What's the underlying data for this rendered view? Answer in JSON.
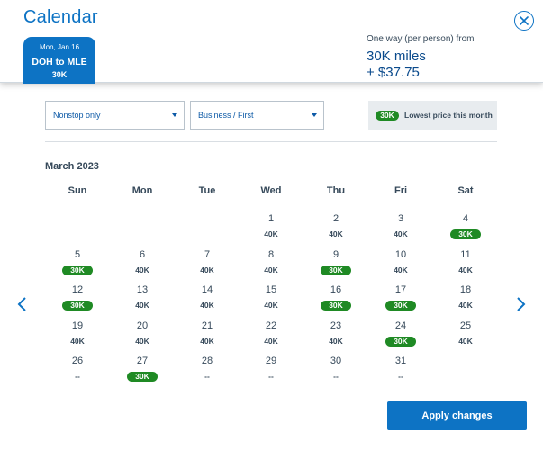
{
  "header": {
    "title": "Calendar",
    "flight_tab": {
      "date": "Mon, Jan 16",
      "route": "DOH to MLE",
      "price": "30K"
    },
    "price_info": {
      "label": "One way (per person) from",
      "miles": "30K miles",
      "cash": "+ $37.75"
    }
  },
  "filters": {
    "stops": "Nonstop only",
    "cabin": "Business / First",
    "legend_pill": "30K",
    "legend_text": "Lowest price this month"
  },
  "calendar": {
    "month": "March 2023",
    "weekdays": [
      "Sun",
      "Mon",
      "Tue",
      "Wed",
      "Thu",
      "Fri",
      "Sat"
    ],
    "days": [
      {
        "n": "1",
        "p": "40K",
        "low": false
      },
      {
        "n": "2",
        "p": "40K",
        "low": false
      },
      {
        "n": "3",
        "p": "40K",
        "low": false
      },
      {
        "n": "4",
        "p": "30K",
        "low": true
      },
      {
        "n": "5",
        "p": "30K",
        "low": true
      },
      {
        "n": "6",
        "p": "40K",
        "low": false
      },
      {
        "n": "7",
        "p": "40K",
        "low": false
      },
      {
        "n": "8",
        "p": "40K",
        "low": false
      },
      {
        "n": "9",
        "p": "30K",
        "low": true
      },
      {
        "n": "10",
        "p": "40K",
        "low": false
      },
      {
        "n": "11",
        "p": "40K",
        "low": false
      },
      {
        "n": "12",
        "p": "30K",
        "low": true
      },
      {
        "n": "13",
        "p": "40K",
        "low": false
      },
      {
        "n": "14",
        "p": "40K",
        "low": false
      },
      {
        "n": "15",
        "p": "40K",
        "low": false
      },
      {
        "n": "16",
        "p": "30K",
        "low": true
      },
      {
        "n": "17",
        "p": "30K",
        "low": true
      },
      {
        "n": "18",
        "p": "40K",
        "low": false
      },
      {
        "n": "19",
        "p": "40K",
        "low": false
      },
      {
        "n": "20",
        "p": "40K",
        "low": false
      },
      {
        "n": "21",
        "p": "40K",
        "low": false
      },
      {
        "n": "22",
        "p": "40K",
        "low": false
      },
      {
        "n": "23",
        "p": "40K",
        "low": false
      },
      {
        "n": "24",
        "p": "30K",
        "low": true
      },
      {
        "n": "25",
        "p": "40K",
        "low": false
      },
      {
        "n": "26",
        "p": "--",
        "low": false
      },
      {
        "n": "27",
        "p": "30K",
        "low": true
      },
      {
        "n": "28",
        "p": "--",
        "low": false
      },
      {
        "n": "29",
        "p": "--",
        "low": false
      },
      {
        "n": "30",
        "p": "--",
        "low": false
      },
      {
        "n": "31",
        "p": "--",
        "low": false
      }
    ]
  },
  "actions": {
    "apply_label": "Apply changes"
  },
  "icons": {
    "close": "close-icon",
    "prev": "chevron-left-icon",
    "next": "chevron-right-icon",
    "caret": "caret-down-icon"
  },
  "colors": {
    "accent": "#0d73c4",
    "low_price": "#1f8a24"
  }
}
